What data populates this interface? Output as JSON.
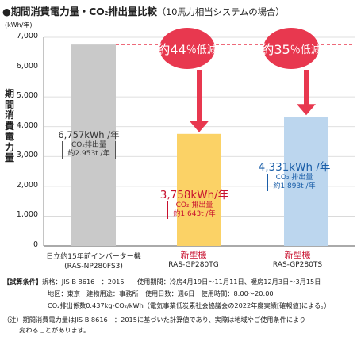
{
  "title": {
    "prefix": "●期間消費電力量・CO",
    "sub": "2",
    "main": "排出量比較",
    "paren": "（10馬力相当システムの場合）"
  },
  "unit": "(kWh/年)",
  "y_axis_label": "期間消費電力量",
  "chart_data": {
    "type": "bar",
    "categories": [
      "日立約15年前インバーター機(RAS-NP280FS3)",
      "新型機 RAS-GP280TG",
      "新型機 RAS-GP280TS"
    ],
    "values": [
      6757,
      3758,
      4331
    ],
    "ylim": [
      0,
      7000
    ],
    "yticks": [
      "0",
      "1,000",
      "2,000",
      "3,000",
      "4,000",
      "5,000",
      "6,000",
      "7,000"
    ],
    "ytick_values": [
      0,
      1000,
      2000,
      3000,
      4000,
      5000,
      6000,
      7000
    ],
    "reference_line": 6757,
    "colors": {
      "old": "#c9c9c9",
      "tg": "#fbd266",
      "ts": "#bcd6ee",
      "accent": "#e8384f",
      "blue": "#1a5ea8"
    }
  },
  "bars": [
    {
      "value_label": "6,757kWh /年",
      "co2_label": "CO₂排出量",
      "co2_value": "約2.953t /年"
    },
    {
      "value_label": "3,758kWh/年",
      "co2_label": "CO₂ 排出量",
      "co2_value": "約1.643t /年"
    },
    {
      "value_label": "4,331kWh /年",
      "co2_label": "CO₂ 排出量",
      "co2_value": "約1.893t /年"
    }
  ],
  "xlabels": [
    {
      "line1": "日立約15年前インバーター機",
      "line2": "(RAS-NP280FS3)"
    },
    {
      "line1": "新型機",
      "line2": "RAS-GP280TG"
    },
    {
      "line1": "新型機",
      "line2": "RAS-GP280TS"
    }
  ],
  "reductions": [
    {
      "pre": "約44",
      "post": " ％低減"
    },
    {
      "pre": "約35",
      "post": " ％低減"
    }
  ],
  "conditions": {
    "line1_head": "【試算条件】",
    "line1": "規格：JIS B 8616　：2015　　使用期間：冷房4月19日〜11月11日、暖房12月3日〜3月15日",
    "line2": "地区：東京　建物用途：事務所　使用日数：週6日　使用時間：8:00〜20:00",
    "line3": "CO₂排出係数0.437kg-CO₂/kWh（電気事業低炭素社会協議会の2022年度実績[確報値]による。）",
    "note1": "（注）期間消費電力量はJIS B 8616　：2015に基づいた計算値であり、実際は地域やご使用条件により",
    "note2": "変わることがあります。"
  }
}
